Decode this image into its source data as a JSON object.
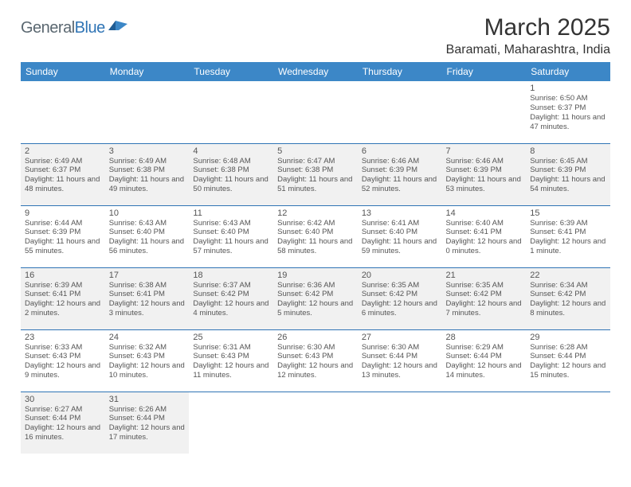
{
  "logo": {
    "part1": "General",
    "part2": "Blue",
    "accent": "#2f74b5",
    "gray": "#5a6770"
  },
  "title": "March 2025",
  "location": "Baramati, Maharashtra, India",
  "header_bg": "#3c87c7",
  "border_color": "#2f74b5",
  "shade_color": "#f1f1f1",
  "weekdays": [
    "Sunday",
    "Monday",
    "Tuesday",
    "Wednesday",
    "Thursday",
    "Friday",
    "Saturday"
  ],
  "weeks": [
    [
      null,
      null,
      null,
      null,
      null,
      null,
      {
        "n": "1",
        "sr": "6:50 AM",
        "ss": "6:37 PM",
        "dl": "11 hours and 47 minutes."
      }
    ],
    [
      {
        "n": "2",
        "sr": "6:49 AM",
        "ss": "6:37 PM",
        "dl": "11 hours and 48 minutes."
      },
      {
        "n": "3",
        "sr": "6:49 AM",
        "ss": "6:38 PM",
        "dl": "11 hours and 49 minutes."
      },
      {
        "n": "4",
        "sr": "6:48 AM",
        "ss": "6:38 PM",
        "dl": "11 hours and 50 minutes."
      },
      {
        "n": "5",
        "sr": "6:47 AM",
        "ss": "6:38 PM",
        "dl": "11 hours and 51 minutes."
      },
      {
        "n": "6",
        "sr": "6:46 AM",
        "ss": "6:39 PM",
        "dl": "11 hours and 52 minutes."
      },
      {
        "n": "7",
        "sr": "6:46 AM",
        "ss": "6:39 PM",
        "dl": "11 hours and 53 minutes."
      },
      {
        "n": "8",
        "sr": "6:45 AM",
        "ss": "6:39 PM",
        "dl": "11 hours and 54 minutes."
      }
    ],
    [
      {
        "n": "9",
        "sr": "6:44 AM",
        "ss": "6:39 PM",
        "dl": "11 hours and 55 minutes."
      },
      {
        "n": "10",
        "sr": "6:43 AM",
        "ss": "6:40 PM",
        "dl": "11 hours and 56 minutes."
      },
      {
        "n": "11",
        "sr": "6:43 AM",
        "ss": "6:40 PM",
        "dl": "11 hours and 57 minutes."
      },
      {
        "n": "12",
        "sr": "6:42 AM",
        "ss": "6:40 PM",
        "dl": "11 hours and 58 minutes."
      },
      {
        "n": "13",
        "sr": "6:41 AM",
        "ss": "6:40 PM",
        "dl": "11 hours and 59 minutes."
      },
      {
        "n": "14",
        "sr": "6:40 AM",
        "ss": "6:41 PM",
        "dl": "12 hours and 0 minutes."
      },
      {
        "n": "15",
        "sr": "6:39 AM",
        "ss": "6:41 PM",
        "dl": "12 hours and 1 minute."
      }
    ],
    [
      {
        "n": "16",
        "sr": "6:39 AM",
        "ss": "6:41 PM",
        "dl": "12 hours and 2 minutes."
      },
      {
        "n": "17",
        "sr": "6:38 AM",
        "ss": "6:41 PM",
        "dl": "12 hours and 3 minutes."
      },
      {
        "n": "18",
        "sr": "6:37 AM",
        "ss": "6:42 PM",
        "dl": "12 hours and 4 minutes."
      },
      {
        "n": "19",
        "sr": "6:36 AM",
        "ss": "6:42 PM",
        "dl": "12 hours and 5 minutes."
      },
      {
        "n": "20",
        "sr": "6:35 AM",
        "ss": "6:42 PM",
        "dl": "12 hours and 6 minutes."
      },
      {
        "n": "21",
        "sr": "6:35 AM",
        "ss": "6:42 PM",
        "dl": "12 hours and 7 minutes."
      },
      {
        "n": "22",
        "sr": "6:34 AM",
        "ss": "6:42 PM",
        "dl": "12 hours and 8 minutes."
      }
    ],
    [
      {
        "n": "23",
        "sr": "6:33 AM",
        "ss": "6:43 PM",
        "dl": "12 hours and 9 minutes."
      },
      {
        "n": "24",
        "sr": "6:32 AM",
        "ss": "6:43 PM",
        "dl": "12 hours and 10 minutes."
      },
      {
        "n": "25",
        "sr": "6:31 AM",
        "ss": "6:43 PM",
        "dl": "12 hours and 11 minutes."
      },
      {
        "n": "26",
        "sr": "6:30 AM",
        "ss": "6:43 PM",
        "dl": "12 hours and 12 minutes."
      },
      {
        "n": "27",
        "sr": "6:30 AM",
        "ss": "6:44 PM",
        "dl": "12 hours and 13 minutes."
      },
      {
        "n": "28",
        "sr": "6:29 AM",
        "ss": "6:44 PM",
        "dl": "12 hours and 14 minutes."
      },
      {
        "n": "29",
        "sr": "6:28 AM",
        "ss": "6:44 PM",
        "dl": "12 hours and 15 minutes."
      }
    ],
    [
      {
        "n": "30",
        "sr": "6:27 AM",
        "ss": "6:44 PM",
        "dl": "12 hours and 16 minutes."
      },
      {
        "n": "31",
        "sr": "6:26 AM",
        "ss": "6:44 PM",
        "dl": "12 hours and 17 minutes."
      },
      null,
      null,
      null,
      null,
      null
    ]
  ],
  "labels": {
    "sunrise": "Sunrise:",
    "sunset": "Sunset:",
    "daylight": "Daylight:"
  }
}
